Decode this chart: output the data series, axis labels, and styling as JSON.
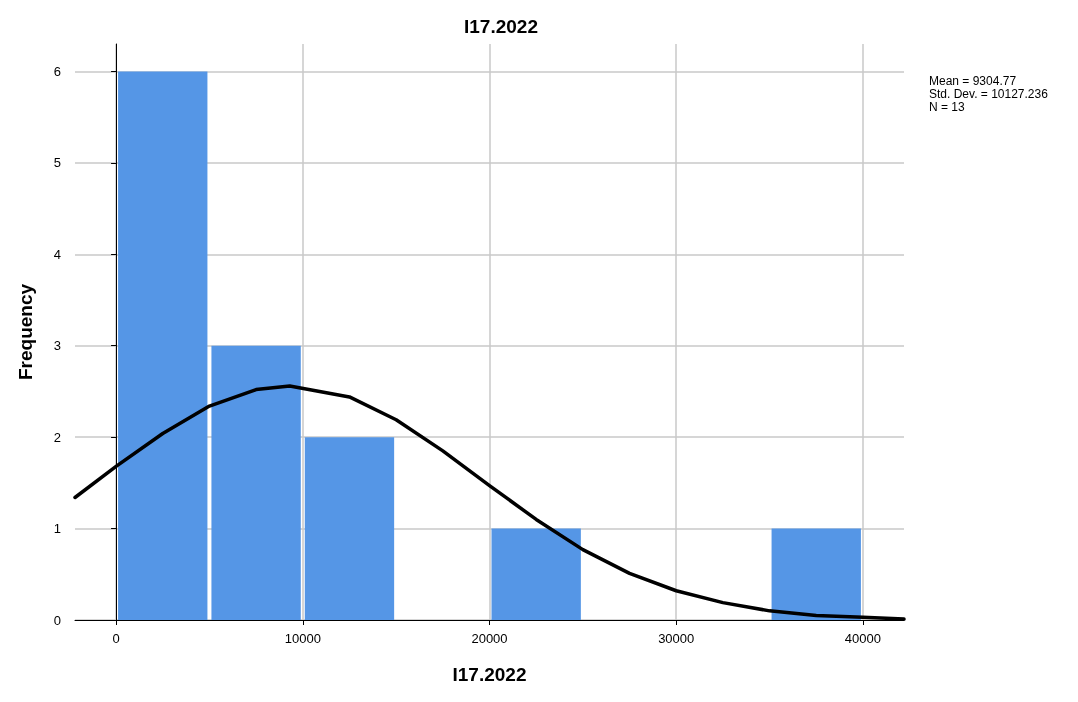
{
  "chart_data": {
    "type": "histogram",
    "title": "I17.2022",
    "xlabel": "I17.2022",
    "ylabel": "Frequency",
    "bins": [
      0,
      5000,
      10000,
      15000,
      20000,
      25000,
      30000,
      35000,
      40000
    ],
    "values": [
      6,
      3,
      2,
      0,
      1,
      0,
      0,
      1
    ],
    "color": "#5596e6",
    "series": [
      {
        "type": "line",
        "color": "#000000",
        "x": [
          -2200,
          0,
          2500,
          5000,
          7500,
          9300,
          12500,
          15000,
          17500,
          20000,
          22500,
          25000,
          27500,
          30000,
          32500,
          35000,
          37500,
          40000,
          42200
        ],
        "values": [
          1.34,
          1.68,
          2.04,
          2.34,
          2.52,
          2.56,
          2.44,
          2.19,
          1.85,
          1.47,
          1.1,
          0.77,
          0.51,
          0.32,
          0.19,
          0.1,
          0.05,
          0.03,
          0.01
        ]
      }
    ],
    "xlim": [
      -2200,
      42200
    ],
    "xticks": [
      0,
      10000,
      20000,
      30000,
      40000
    ],
    "ylim": [
      0,
      6.3
    ],
    "yticks": [
      0,
      1,
      2,
      3,
      4,
      5,
      6
    ],
    "grid": true,
    "marker": "none",
    "line_style": "solid",
    "annotations": [
      "Mean = 9304.77",
      "Std. Dev. = 10127.236",
      "N = 13"
    ]
  }
}
